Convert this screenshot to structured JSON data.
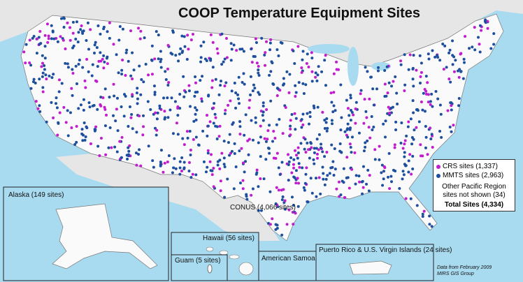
{
  "title": "COOP Temperature Equipment Sites",
  "legend": {
    "items": [
      {
        "label": "CRS sites (1,337)",
        "color": "#c21ccf"
      },
      {
        "label": "MMTS sites (2,963)",
        "color": "#1d4f9e"
      }
    ],
    "note": "Other Pacific Region sites not shown (34)",
    "total": "Total Sites (4,334)"
  },
  "regions": {
    "conus": "CONUS (4,066 sites)",
    "alaska": "Alaska (149 sites)",
    "hawaii": "Hawaii (56 sites)",
    "guam": "Guam (5 sites)",
    "samoa": "American Samoa",
    "puerto_rico": "Puerto Rico & U.S. Virgin Islands (24 sites)"
  },
  "credits": [
    "Data from February 2009",
    "MIRS GIS Group"
  ]
}
